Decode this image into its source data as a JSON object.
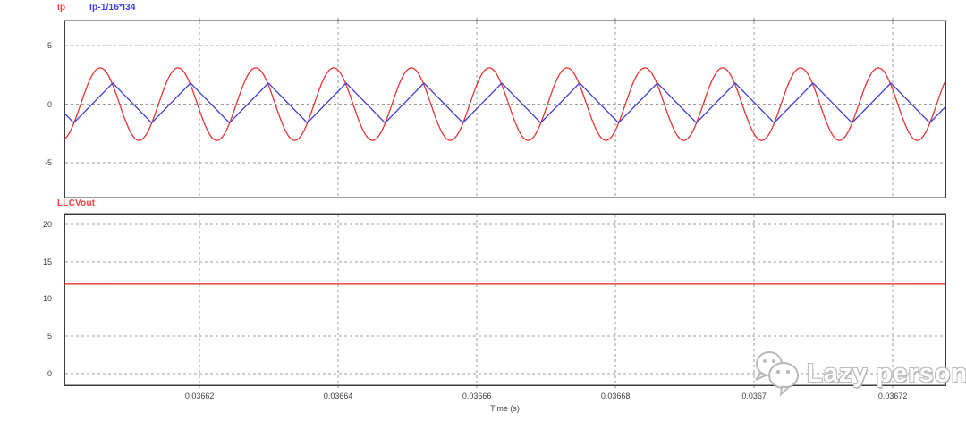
{
  "window": {
    "background": "#ffffff"
  },
  "axis": {
    "time_label": "Time (s)"
  },
  "colors": {
    "waveform_red": "#e93232",
    "waveform_blue": "#3c3cd9",
    "legend_red": "#ff3b3b",
    "legend_blue": "#3b3bff",
    "grid": "#9b9b9b",
    "border": "#3d3d3d",
    "tick_text": "#3f3f3f",
    "watermark_gray": "#b5b5b5"
  },
  "watermark": {
    "icon": "wechat-logo-icon",
    "text": "Lazy person"
  },
  "chart_data": [
    {
      "type": "line",
      "panel": "top",
      "title": "",
      "xlabel": "Time (s)",
      "ylabel": "",
      "grid": true,
      "legend_position": "top-left",
      "x_range": [
        0.0366005,
        0.0367276
      ],
      "x_ticks": [
        0.03662,
        0.03664,
        0.03666,
        0.03668,
        0.0367,
        0.03672
      ],
      "x_tick_labels": [
        "0.03662",
        "0.03664",
        "0.03666",
        "0.03668",
        "0.0367",
        "0.03672"
      ],
      "y_range": [
        -7.98,
        7.14
      ],
      "y_ticks": [
        5,
        0,
        -5
      ],
      "y_tick_labels": [
        "5",
        "0",
        "-5"
      ],
      "series": [
        {
          "name": "Ip",
          "color": "#e93232",
          "shape": "sine",
          "amplitude": 3.1,
          "offset": 0,
          "period_s": 1.1226e-05,
          "frequency_hz": 89080,
          "peak_time_s": 0.03660566
        },
        {
          "name": "Ip-1/16*I34",
          "color": "#3c3cd9",
          "shape": "triangle",
          "max": 1.8,
          "min": -1.6,
          "period_s": 1.1226e-05,
          "frequency_hz": 89080,
          "peak_time_s": 0.03660747
        }
      ]
    },
    {
      "type": "line",
      "panel": "bottom",
      "title": "",
      "xlabel": "Time (s)",
      "ylabel": "",
      "grid": true,
      "legend_position": "top-left",
      "x_range": [
        0.0366005,
        0.0367276
      ],
      "x_ticks": [
        0.03662,
        0.03664,
        0.03666,
        0.03668,
        0.0367,
        0.03672
      ],
      "x_tick_labels": [
        "0.03662",
        "0.03664",
        "0.03666",
        "0.03668",
        "0.0367",
        "0.03672"
      ],
      "y_range": [
        -1.56,
        21.44
      ],
      "y_ticks": [
        0,
        5,
        10,
        15,
        20
      ],
      "y_tick_labels": [
        "0",
        "5",
        "10",
        "15",
        "20"
      ],
      "series": [
        {
          "name": "LLCVout",
          "color": "#e93232",
          "shape": "constant",
          "value": 12
        }
      ]
    }
  ]
}
